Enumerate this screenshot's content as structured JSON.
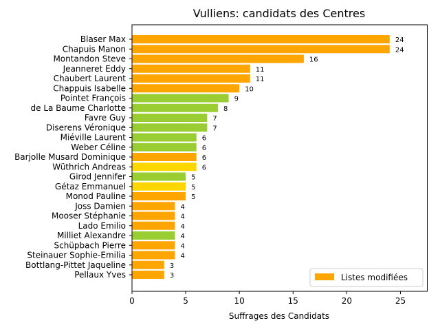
{
  "chart_data": {
    "type": "bar",
    "orientation": "horizontal",
    "title": "Vulliens: candidats des Centres",
    "xlabel": "Suffrages des Candidats",
    "ylabel": "",
    "xlim": [
      0,
      27.5
    ],
    "xticks": [
      0,
      5,
      10,
      15,
      20,
      25
    ],
    "grid": false,
    "legend": {
      "position": "bottom-right",
      "entries": [
        {
          "label": "Listes modifiées",
          "color": "#FFA500"
        }
      ]
    },
    "colors": {
      "orange": "#FFA500",
      "green": "#9ACD32",
      "yellow": "#FFD700"
    },
    "categories": [
      "Blaser Max",
      "Chapuis Manon",
      "Montandon Steve",
      "Jeanneret Eddy",
      "Chaubert Laurent",
      "Chappuis Isabelle",
      "Pointet François",
      "de La Baume Charlotte",
      "Favre Guy",
      "Diserens Véronique",
      "Miéville Laurent",
      "Weber Céline",
      "Barjolle Musard Dominique",
      "Wüthrich Andreas",
      "Girod Jennifer",
      "Gétaz Emmanuel",
      "Monod Pauline",
      "Joss Damien",
      "Mooser Stéphanie",
      "Lado Emilio",
      "Milliet Alexandre",
      "Schüpbach Pierre",
      "Steinauer Sophie-Emilia",
      "Bottlang-Pittet Jaqueline",
      "Pellaux Yves"
    ],
    "values": [
      24,
      24,
      16,
      11,
      11,
      10,
      9,
      8,
      7,
      7,
      6,
      6,
      6,
      6,
      5,
      5,
      5,
      4,
      4,
      4,
      4,
      4,
      4,
      3,
      3
    ],
    "bar_colors": [
      "orange",
      "orange",
      "orange",
      "orange",
      "orange",
      "orange",
      "green",
      "green",
      "green",
      "green",
      "green",
      "green",
      "orange",
      "yellow",
      "green",
      "yellow",
      "orange",
      "orange",
      "orange",
      "orange",
      "green",
      "orange",
      "orange",
      "orange",
      "orange"
    ]
  }
}
